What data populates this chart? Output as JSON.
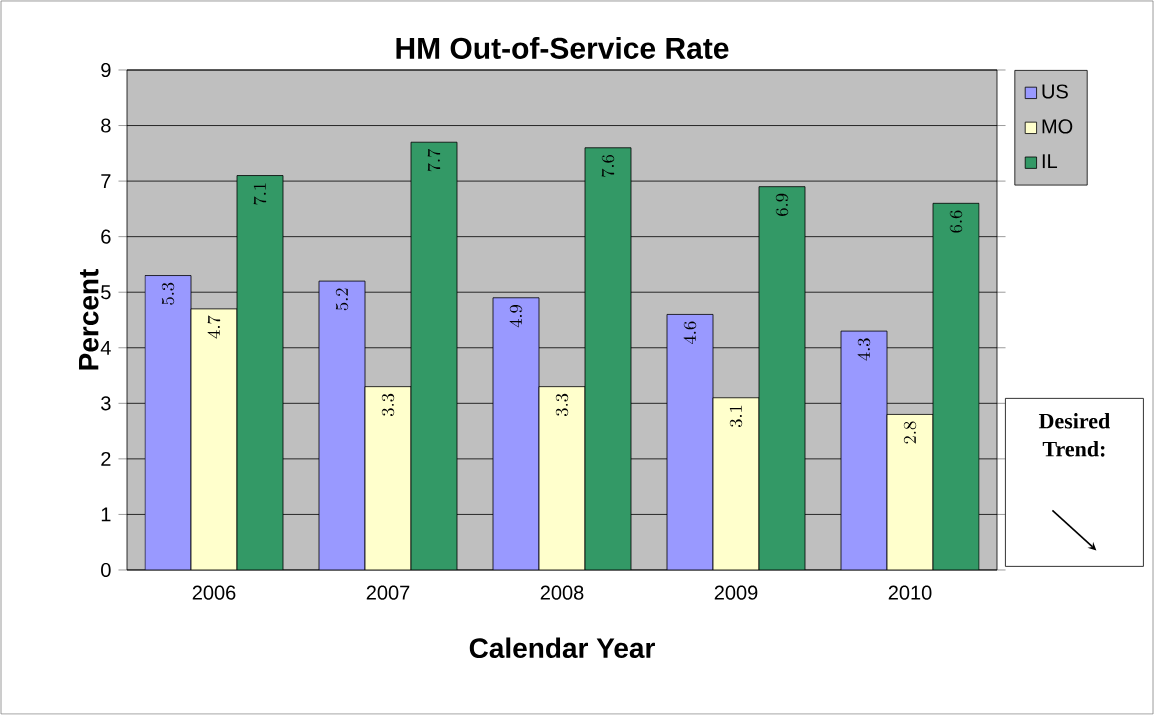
{
  "chart_data": {
    "type": "bar",
    "title": "HM Out-of-Service Rate",
    "xlabel": "Calendar Year",
    "ylabel": "Percent",
    "categories": [
      "2006",
      "2007",
      "2008",
      "2009",
      "2010"
    ],
    "series": [
      {
        "name": "US",
        "color": "#9999ff",
        "values": [
          5.3,
          5.2,
          4.9,
          4.6,
          4.3
        ]
      },
      {
        "name": "MO",
        "color": "#ffffcc",
        "values": [
          4.7,
          3.3,
          3.3,
          3.1,
          2.8
        ]
      },
      {
        "name": "IL",
        "color": "#339966",
        "values": [
          7.1,
          7.7,
          7.6,
          6.9,
          6.6
        ]
      }
    ],
    "ylim": [
      0,
      9
    ],
    "yticks": [
      0,
      1,
      2,
      3,
      4,
      5,
      6,
      7,
      8,
      9
    ],
    "grid": "y",
    "legend": "top right",
    "data_labels": true,
    "annotations": [
      "Desired Trend:"
    ]
  }
}
